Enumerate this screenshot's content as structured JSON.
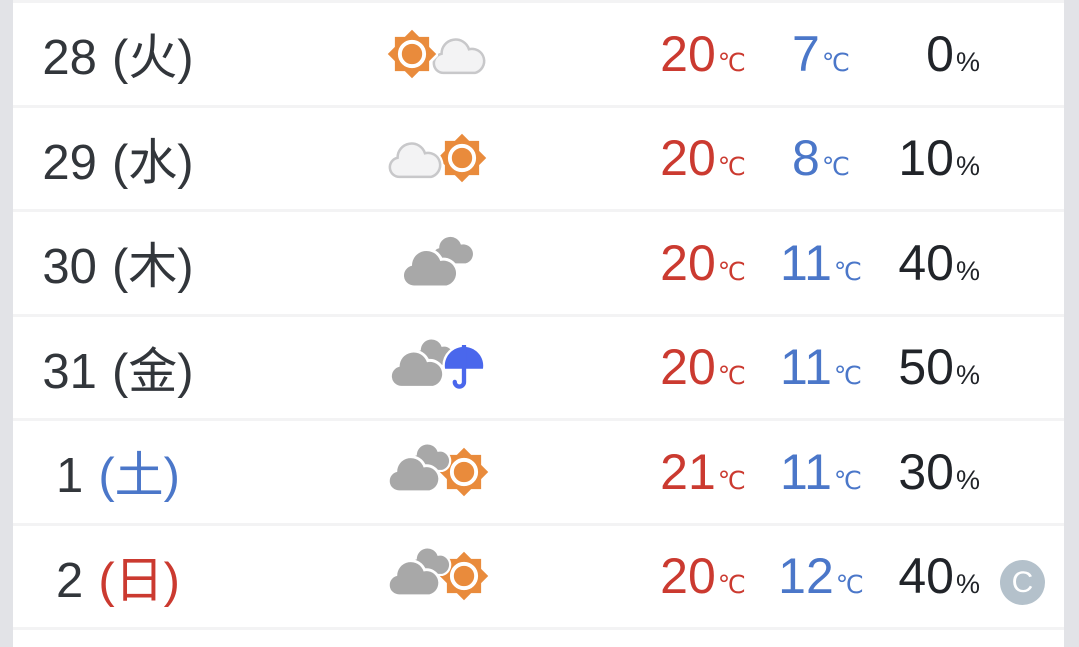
{
  "units": {
    "temp": "℃",
    "pop": "%"
  },
  "badge": {
    "label": "C"
  },
  "colors": {
    "day-text": "#32363b",
    "high-temp": "#cb3a30",
    "low-temp": "#4b77c9",
    "pop-text": "#212429",
    "saturday": "#4b77c9",
    "sunday": "#cb3a30",
    "sun": "#e98b3c",
    "cloud-gray": "#a8a8a8",
    "cloud-white-fill": "#f3f3f4",
    "cloud-white-stroke": "#c8c8ca",
    "umbrella": "#4a67ec",
    "divider": "#f3f3f4",
    "gutter": "#e2e3e7",
    "badge-bg": "#b4c1cb"
  },
  "rows": [
    {
      "date": "28",
      "weekday": "(火)",
      "weekday_color": "default",
      "icon": "sun-then-cloud-icon",
      "high": "20",
      "low": "7",
      "pop": "0"
    },
    {
      "date": "29",
      "weekday": "(水)",
      "weekday_color": "default",
      "icon": "cloud-then-sun-icon",
      "high": "20",
      "low": "8",
      "pop": "10"
    },
    {
      "date": "30",
      "weekday": "(木)",
      "weekday_color": "default",
      "icon": "cloudy-icon",
      "high": "20",
      "low": "11",
      "pop": "40"
    },
    {
      "date": "31",
      "weekday": "(金)",
      "weekday_color": "default",
      "icon": "cloud-rain-icon",
      "high": "20",
      "low": "11",
      "pop": "50"
    },
    {
      "date": "1",
      "weekday": "(土)",
      "weekday_color": "saturday",
      "icon": "cloud-then-sun-gray-icon",
      "high": "21",
      "low": "11",
      "pop": "30"
    },
    {
      "date": "2",
      "weekday": "(日)",
      "weekday_color": "sunday",
      "icon": "cloud-then-sun-gray-icon",
      "high": "20",
      "low": "12",
      "pop": "40"
    }
  ]
}
